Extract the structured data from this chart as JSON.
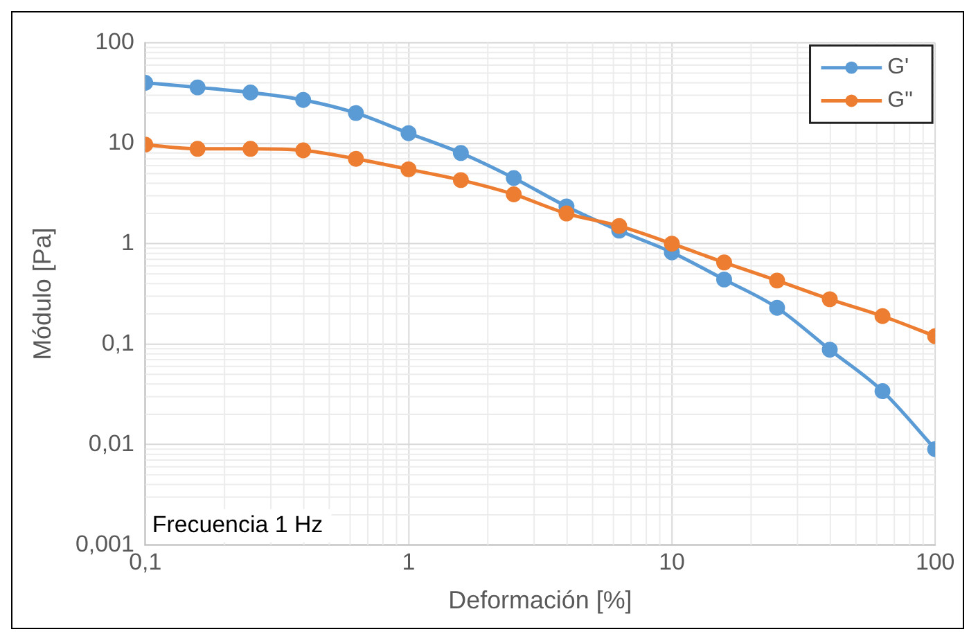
{
  "chart_data": {
    "type": "line",
    "xlabel": "Deformación [%]",
    "ylabel": "Módulo [Pa]",
    "x": [
      0.1,
      0.158,
      0.251,
      0.398,
      0.631,
      1,
      1.58,
      2.51,
      3.98,
      6.31,
      10,
      15.8,
      25.1,
      39.8,
      63.1,
      100
    ],
    "series": [
      {
        "name": "G'",
        "color": "#5b9bd5",
        "values": [
          40,
          36,
          32,
          27,
          20,
          12.6,
          8,
          4.5,
          2.35,
          1.35,
          0.82,
          0.44,
          0.23,
          0.088,
          0.034,
          0.009
        ]
      },
      {
        "name": "G''",
        "color": "#ed7d31",
        "values": [
          9.7,
          8.8,
          8.8,
          8.5,
          7,
          5.5,
          4.3,
          3.1,
          2.0,
          1.5,
          1.0,
          0.65,
          0.43,
          0.28,
          0.19,
          0.12
        ]
      }
    ],
    "log": "xy",
    "xlim": [
      0.1,
      100
    ],
    "ylim": [
      0.001,
      100
    ],
    "xticks": [
      {
        "value": 0.1,
        "label": "0,1"
      },
      1,
      10,
      100
    ],
    "yticks": [
      {
        "value": 0.001,
        "label": "0,001"
      },
      {
        "value": 0.01,
        "label": "0,01"
      },
      {
        "value": 0.1,
        "label": "0,1"
      },
      1,
      10,
      100
    ],
    "grid": true,
    "legend": "top right",
    "marker": "circle",
    "line_style": "solid",
    "annotations": [
      "Frecuencia 1 Hz"
    ]
  }
}
